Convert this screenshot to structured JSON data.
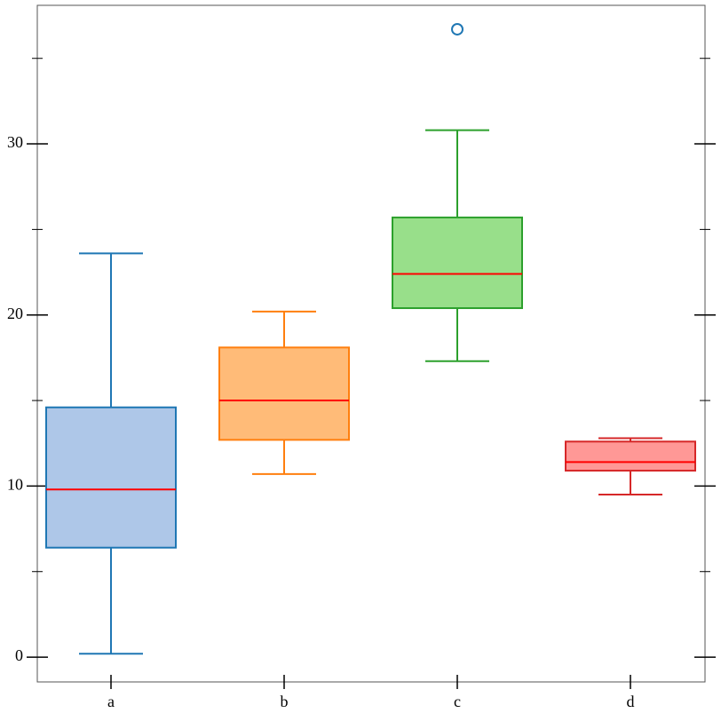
{
  "chart_data": {
    "type": "box",
    "categories": [
      "a",
      "b",
      "c",
      "d"
    ],
    "boxes": [
      {
        "color": "#1f77b4",
        "fill": "#aec7e8",
        "whislo": 0.2,
        "q1": 6.4,
        "med": 9.8,
        "q3": 14.6,
        "whishi": 23.6,
        "fliers": []
      },
      {
        "color": "#ff7f0e",
        "fill": "#ffbb78",
        "whislo": 10.7,
        "q1": 12.7,
        "med": 15.0,
        "q3": 18.1,
        "whishi": 20.2,
        "fliers": []
      },
      {
        "color": "#2ca02c",
        "fill": "#98df8a",
        "whislo": 17.3,
        "q1": 20.4,
        "med": 22.4,
        "q3": 25.7,
        "whishi": 30.8,
        "fliers": [
          36.7
        ]
      },
      {
        "color": "#d62728",
        "fill": "#ff9896",
        "whislo": 9.5,
        "q1": 10.9,
        "med": 11.4,
        "q3": 12.6,
        "whishi": 12.8,
        "fliers": []
      }
    ],
    "median_color": "#ff0000",
    "flier_color": "#1f77b4",
    "ylim": [
      -1.45,
      38.1
    ],
    "yticks": [
      0,
      10,
      20,
      30
    ],
    "yminorticks": [
      5,
      15,
      25,
      35
    ]
  }
}
